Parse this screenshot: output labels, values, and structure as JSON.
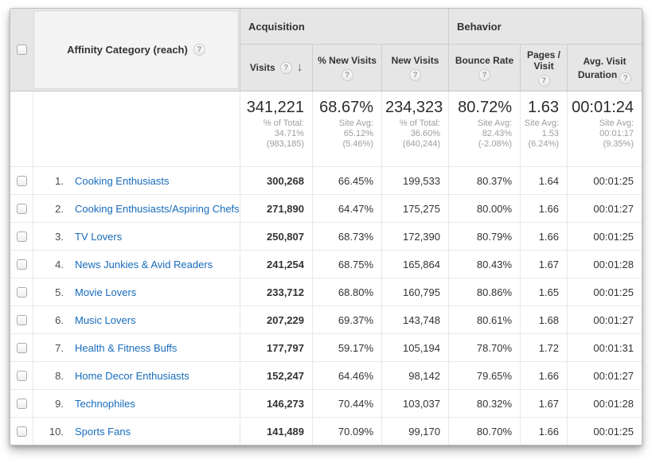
{
  "colors": {
    "link_blue": "#176cbb",
    "header_gray": "#e6e6e6",
    "value_text": "#333333",
    "summary_subtext": "#9e9e9e"
  },
  "icons": {
    "help": "?",
    "sort_desc": "↓"
  },
  "table": {
    "dimension_header": {
      "label": "Affinity Category (reach)"
    },
    "groups": [
      {
        "label": "Acquisition"
      },
      {
        "label": "Behavior"
      }
    ],
    "columns": [
      {
        "label": "Visits",
        "sorted": "descending"
      },
      {
        "label": "% New Visits"
      },
      {
        "label": "New Visits"
      },
      {
        "label": "Bounce Rate"
      },
      {
        "label": "Pages / Visit"
      },
      {
        "label": "Avg. Visit Duration"
      }
    ],
    "summary": {
      "visits": {
        "value": "341,221",
        "sub": "% of Total: 34.71% (983,185)"
      },
      "pct_new_visits": {
        "value": "68.67%",
        "sub": "Site Avg: 65.12% (5.46%)"
      },
      "new_visits": {
        "value": "234,323",
        "sub": "% of Total: 36.60% (640,244)"
      },
      "bounce_rate": {
        "value": "80.72%",
        "sub": "Site Avg: 82.43% (-2.08%)"
      },
      "pages_per_visit": {
        "value": "1.63",
        "sub": "Site Avg: 1.53 (6.24%)"
      },
      "avg_visit_duration": {
        "value": "00:01:24",
        "sub": "Site Avg: 00:01:17 (9.35%)"
      }
    },
    "rows": [
      {
        "index": "1.",
        "category": "Cooking Enthusiasts",
        "visits": "300,268",
        "pct_new_visits": "66.45%",
        "new_visits": "199,533",
        "bounce_rate": "80.37%",
        "pages_per_visit": "1.64",
        "avg_visit_duration": "00:01:25"
      },
      {
        "index": "2.",
        "category": "Cooking Enthusiasts/Aspiring Chefs",
        "visits": "271,890",
        "pct_new_visits": "64.47%",
        "new_visits": "175,275",
        "bounce_rate": "80.00%",
        "pages_per_visit": "1.66",
        "avg_visit_duration": "00:01:27"
      },
      {
        "index": "3.",
        "category": "TV Lovers",
        "visits": "250,807",
        "pct_new_visits": "68.73%",
        "new_visits": "172,390",
        "bounce_rate": "80.79%",
        "pages_per_visit": "1.66",
        "avg_visit_duration": "00:01:25"
      },
      {
        "index": "4.",
        "category": "News Junkies & Avid Readers",
        "visits": "241,254",
        "pct_new_visits": "68.75%",
        "new_visits": "165,864",
        "bounce_rate": "80.43%",
        "pages_per_visit": "1.67",
        "avg_visit_duration": "00:01:28"
      },
      {
        "index": "5.",
        "category": "Movie Lovers",
        "visits": "233,712",
        "pct_new_visits": "68.80%",
        "new_visits": "160,795",
        "bounce_rate": "80.86%",
        "pages_per_visit": "1.65",
        "avg_visit_duration": "00:01:25"
      },
      {
        "index": "6.",
        "category": "Music Lovers",
        "visits": "207,229",
        "pct_new_visits": "69.37%",
        "new_visits": "143,748",
        "bounce_rate": "80.61%",
        "pages_per_visit": "1.68",
        "avg_visit_duration": "00:01:27"
      },
      {
        "index": "7.",
        "category": "Health & Fitness Buffs",
        "visits": "177,797",
        "pct_new_visits": "59.17%",
        "new_visits": "105,194",
        "bounce_rate": "78.70%",
        "pages_per_visit": "1.72",
        "avg_visit_duration": "00:01:31"
      },
      {
        "index": "8.",
        "category": "Home Decor Enthusiasts",
        "visits": "152,247",
        "pct_new_visits": "64.46%",
        "new_visits": "98,142",
        "bounce_rate": "79.65%",
        "pages_per_visit": "1.66",
        "avg_visit_duration": "00:01:27"
      },
      {
        "index": "9.",
        "category": "Technophiles",
        "visits": "146,273",
        "pct_new_visits": "70.44%",
        "new_visits": "103,037",
        "bounce_rate": "80.32%",
        "pages_per_visit": "1.67",
        "avg_visit_duration": "00:01:28"
      },
      {
        "index": "10.",
        "category": "Sports Fans",
        "visits": "141,489",
        "pct_new_visits": "70.09%",
        "new_visits": "99,170",
        "bounce_rate": "80.70%",
        "pages_per_visit": "1.66",
        "avg_visit_duration": "00:01:25"
      }
    ]
  }
}
